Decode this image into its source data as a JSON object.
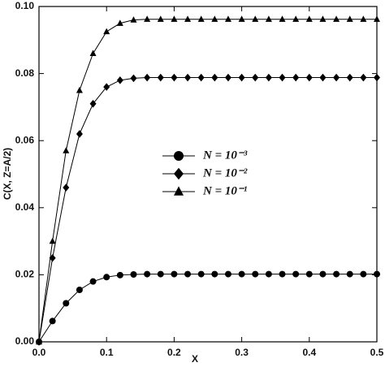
{
  "chart_data": {
    "type": "line",
    "xlabel": "X",
    "ylabel": "C(X, Z=A/2)",
    "x": [
      0,
      0.02,
      0.04,
      0.06,
      0.08,
      0.1,
      0.12,
      0.14,
      0.16,
      0.18,
      0.2,
      0.22,
      0.24,
      0.26,
      0.28,
      0.3,
      0.32,
      0.34,
      0.36,
      0.38,
      0.4,
      0.42,
      0.44,
      0.46,
      0.48,
      0.5
    ],
    "series": [
      {
        "name": "N = 10⁻³",
        "marker": "circle",
        "color": "#000000",
        "values": [
          0,
          0.0062,
          0.0115,
          0.0155,
          0.018,
          0.0193,
          0.0199,
          0.0201,
          0.0202,
          0.0202,
          0.0202,
          0.0202,
          0.0202,
          0.0202,
          0.0202,
          0.0202,
          0.0202,
          0.0202,
          0.0202,
          0.0202,
          0.0202,
          0.0202,
          0.0202,
          0.0202,
          0.0202,
          0.0202
        ]
      },
      {
        "name": "N = 10⁻²",
        "marker": "diamond",
        "color": "#000000",
        "values": [
          0,
          0.025,
          0.046,
          0.062,
          0.071,
          0.076,
          0.078,
          0.0786,
          0.0788,
          0.0788,
          0.0788,
          0.0788,
          0.0788,
          0.0788,
          0.0788,
          0.0788,
          0.0788,
          0.0788,
          0.0788,
          0.0788,
          0.0788,
          0.0788,
          0.0788,
          0.0788,
          0.0788,
          0.0788
        ]
      },
      {
        "name": "N = 10⁻¹",
        "marker": "triangle",
        "color": "#000000",
        "values": [
          0,
          0.03,
          0.057,
          0.075,
          0.086,
          0.0925,
          0.095,
          0.096,
          0.0962,
          0.0962,
          0.0962,
          0.0962,
          0.0962,
          0.0962,
          0.0962,
          0.0962,
          0.0962,
          0.0962,
          0.0962,
          0.0962,
          0.0962,
          0.0962,
          0.0962,
          0.0962,
          0.0962,
          0.0962
        ]
      }
    ],
    "xlim": [
      0,
      0.5
    ],
    "xticks": [
      {
        "value": 0,
        "label": "0.0"
      },
      0.1,
      0.2,
      0.3,
      0.4,
      0.5
    ],
    "ylim": [
      0,
      0.1
    ],
    "yticks": [
      {
        "value": 0,
        "label": "0.00"
      },
      {
        "value": 0.02,
        "label": "0.02"
      },
      {
        "value": 0.04,
        "label": "0.04"
      },
      {
        "value": 0.06,
        "label": "0.06"
      },
      {
        "value": 0.08,
        "label": "0.08"
      },
      {
        "value": 0.1,
        "label": "0.10"
      }
    ]
  }
}
